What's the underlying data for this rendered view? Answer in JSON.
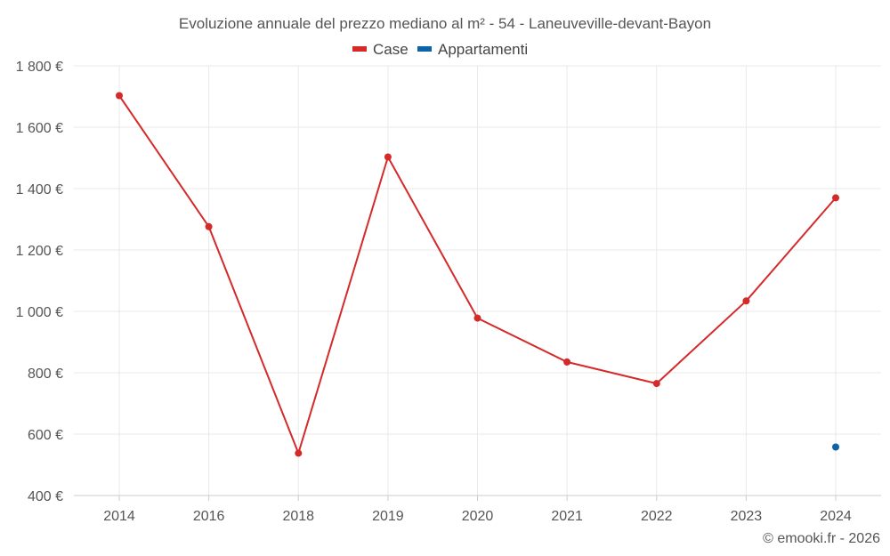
{
  "chart_data": {
    "type": "line",
    "title": "Evoluzione annuale del prezzo mediano al m² - 54 - Laneuveville-devant-Bayon",
    "categories": [
      "2014",
      "2016",
      "2018",
      "2019",
      "2020",
      "2021",
      "2022",
      "2023",
      "2024"
    ],
    "series": [
      {
        "name": "Case",
        "color": "#d42a2a",
        "values": [
          1703,
          1276,
          538,
          1503,
          978,
          835,
          765,
          1034,
          1370
        ]
      },
      {
        "name": "Appartamenti",
        "color": "#0e63a6",
        "values": [
          null,
          null,
          null,
          null,
          null,
          null,
          null,
          null,
          558
        ]
      }
    ],
    "ylim": [
      400,
      1800
    ],
    "yticks": [
      400,
      600,
      800,
      1000,
      1200,
      1400,
      1600,
      1800
    ],
    "ytick_labels": [
      "400 €",
      "600 €",
      "800 €",
      "1 000 €",
      "1 200 €",
      "1 400 €",
      "1 600 €",
      "1 800 €"
    ],
    "xlabel": "",
    "ylabel": "",
    "grid": true,
    "legend_position": "top-center"
  },
  "credit": "© emooki.fr - 2026"
}
